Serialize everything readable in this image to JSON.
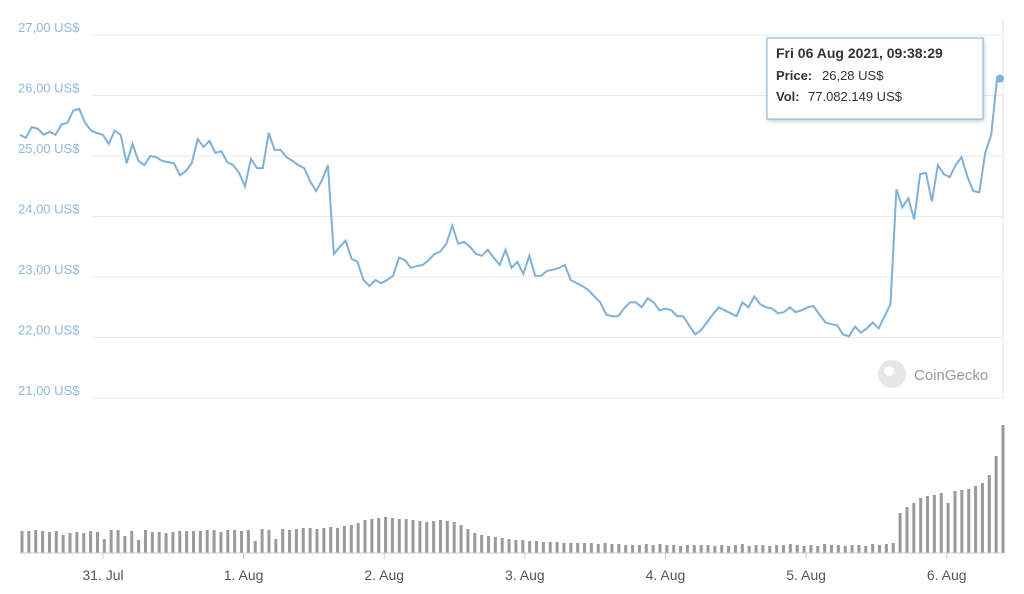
{
  "chart_data": {
    "type": "line",
    "color": "#7fb1d8",
    "grid": true,
    "ylim": [
      21,
      27
    ],
    "yticks": [
      {
        "value": 21,
        "label": "21,00 US$"
      },
      {
        "value": 22,
        "label": "22,00 US$"
      },
      {
        "value": 23,
        "label": "23,00 US$"
      },
      {
        "value": 24,
        "label": "24,00 US$"
      },
      {
        "value": 25,
        "label": "25,00 US$"
      },
      {
        "value": 26,
        "label": "26,00 US$"
      },
      {
        "value": 27,
        "label": "27,00 US$"
      }
    ],
    "xlim": [
      -0.59,
      6.4
    ],
    "xticks": [
      {
        "value": 0,
        "label": "31. Jul"
      },
      {
        "value": 1,
        "label": "1. Aug"
      },
      {
        "value": 2,
        "label": "2. Aug"
      },
      {
        "value": 3,
        "label": "3. Aug"
      },
      {
        "value": 4,
        "label": "4. Aug"
      },
      {
        "value": 5,
        "label": "5. Aug"
      },
      {
        "value": 6,
        "label": "6. Aug"
      }
    ],
    "values": [
      25.35,
      25.3,
      25.48,
      25.45,
      25.35,
      25.4,
      25.35,
      25.52,
      25.55,
      25.75,
      25.78,
      25.55,
      25.42,
      25.38,
      25.35,
      25.2,
      25.42,
      25.35,
      24.88,
      25.2,
      24.92,
      24.85,
      25.0,
      24.98,
      24.92,
      24.9,
      24.88,
      24.68,
      24.75,
      24.88,
      25.28,
      25.15,
      25.25,
      25.05,
      25.08,
      24.9,
      24.85,
      24.72,
      24.5,
      24.95,
      24.8,
      24.8,
      25.38,
      25.1,
      25.1,
      24.98,
      24.92,
      24.85,
      24.8,
      24.58,
      24.42,
      24.6,
      24.85,
      23.38,
      23.5,
      23.6,
      23.3,
      23.25,
      22.95,
      22.85,
      22.95,
      22.9,
      22.95,
      23.02,
      23.32,
      23.28,
      23.15,
      23.18,
      23.2,
      23.28,
      23.38,
      23.42,
      23.55,
      23.85,
      23.55,
      23.58,
      23.5,
      23.38,
      23.35,
      23.45,
      23.32,
      23.2,
      23.45,
      23.15,
      23.25,
      23.05,
      23.35,
      23.02,
      23.02,
      23.1,
      23.12,
      23.15,
      23.2,
      22.95,
      22.9,
      22.85,
      22.78,
      22.68,
      22.58,
      22.38,
      22.35,
      22.35,
      22.48,
      22.58,
      22.58,
      22.5,
      22.65,
      22.58,
      22.45,
      22.48,
      22.45,
      22.35,
      22.35,
      22.2,
      22.05,
      22.12,
      22.25,
      22.38,
      22.5,
      22.45,
      22.4,
      22.35,
      22.58,
      22.5,
      22.68,
      22.55,
      22.5,
      22.48,
      22.4,
      22.42,
      22.5,
      22.42,
      22.45,
      22.5,
      22.52,
      22.38,
      22.25,
      22.22,
      22.2,
      22.05,
      22.02,
      22.18,
      22.08,
      22.15,
      22.25,
      22.15,
      22.35,
      22.55,
      24.45,
      24.15,
      24.3,
      23.95,
      24.7,
      24.72,
      24.25,
      24.85,
      24.7,
      24.65,
      24.85,
      24.98,
      24.65,
      24.42,
      24.4,
      25.05,
      25.35,
      26.28,
      26.28
    ],
    "volume": {
      "color": "#9a9a9a",
      "values": [
        17600000,
        17600000,
        18400000,
        17600000,
        16800000,
        17600000,
        14400000,
        16000000,
        16800000,
        16000000,
        17600000,
        16800000,
        11200000,
        18400000,
        18400000,
        13600000,
        17600000,
        10400000,
        18400000,
        16800000,
        16800000,
        16000000,
        16800000,
        17600000,
        17600000,
        17600000,
        17600000,
        18400000,
        18400000,
        16800000,
        18400000,
        18400000,
        17600000,
        18400000,
        9600000,
        19200000,
        18400000,
        11200000,
        19200000,
        18400000,
        19200000,
        20000000,
        20000000,
        19200000,
        20000000,
        20800000,
        20000000,
        21600000,
        22400000,
        24000000,
        26400000,
        27200000,
        28000000,
        28800000,
        28000000,
        27200000,
        27200000,
        26400000,
        25600000,
        24800000,
        25600000,
        26400000,
        25600000,
        24800000,
        22400000,
        19200000,
        16000000,
        14400000,
        13600000,
        12800000,
        12000000,
        11200000,
        10400000,
        10400000,
        9600000,
        9600000,
        8800000,
        8800000,
        8800000,
        8000000,
        8000000,
        8000000,
        8000000,
        8000000,
        7200000,
        8000000,
        7200000,
        7200000,
        6400000,
        6400000,
        6400000,
        7200000,
        6400000,
        7200000,
        6400000,
        6400000,
        5600000,
        6400000,
        6400000,
        6400000,
        6400000,
        5600000,
        6400000,
        5600000,
        6400000,
        7200000,
        5600000,
        6400000,
        6400000,
        5600000,
        6400000,
        6400000,
        7200000,
        6400000,
        5600000,
        6400000,
        5600000,
        7200000,
        6400000,
        6400000,
        5600000,
        6400000,
        6400000,
        5600000,
        7200000,
        6400000,
        7200000,
        8000000,
        32000000,
        36800000,
        40000000,
        44000000,
        45600000,
        46400000,
        48000000,
        40000000,
        49600000,
        50400000,
        51200000,
        53600000,
        56000000,
        62400000,
        77600000,
        102400000
      ]
    },
    "tooltip": {
      "date": "Fri 06 Aug 2021, 09:38:29",
      "price_label": "Price:",
      "price": "26,28 US$",
      "vol_label": "Vol:",
      "vol": "77.082.149 US$"
    },
    "watermark": "CoinGecko"
  }
}
